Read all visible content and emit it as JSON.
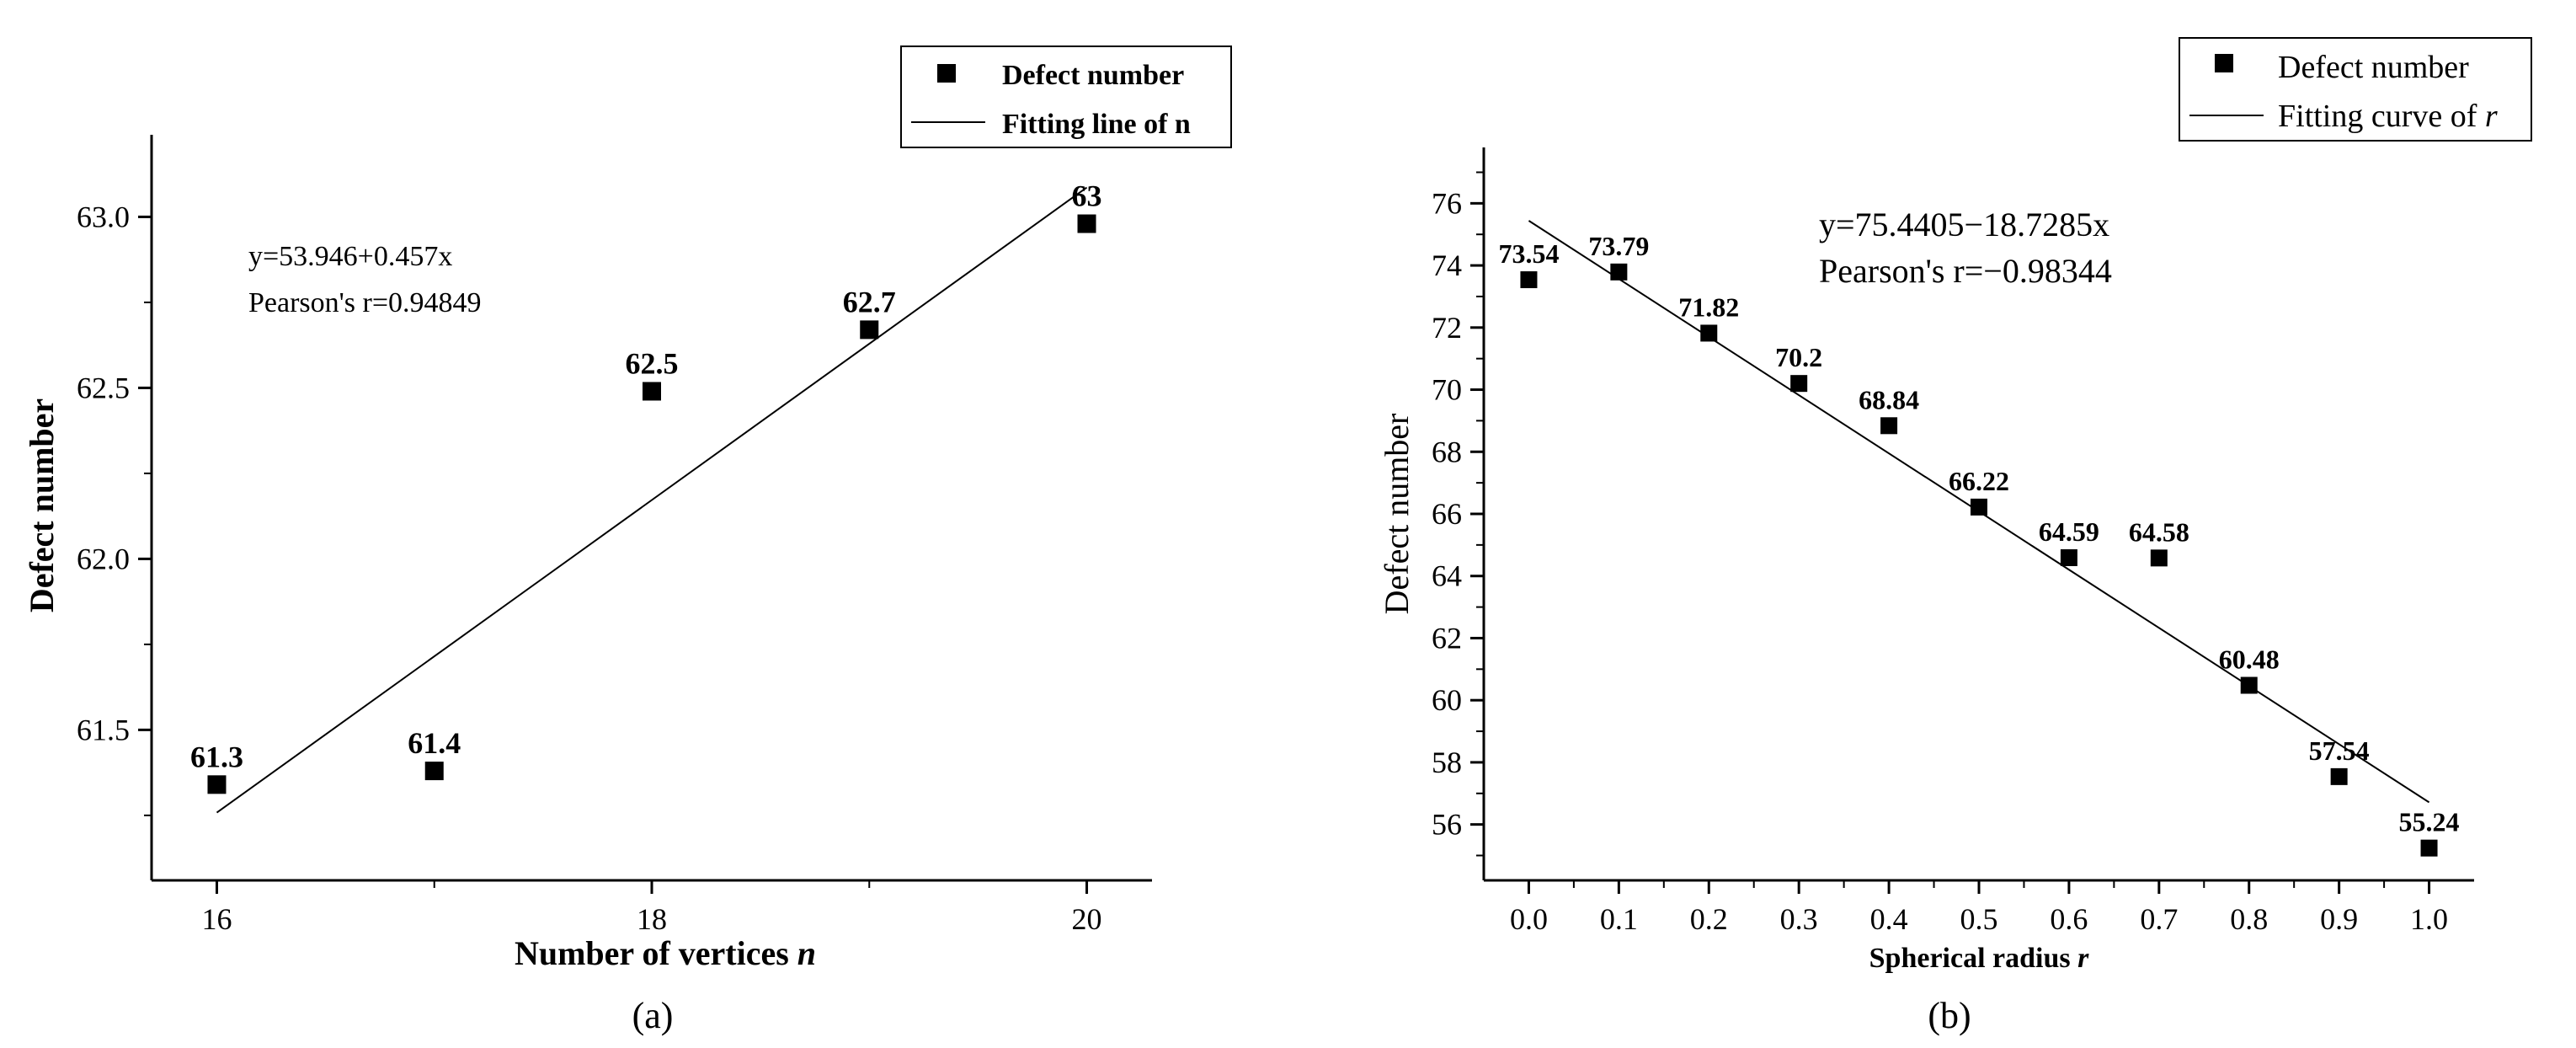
{
  "chart_data": [
    {
      "type": "scatter",
      "panel": "(a)",
      "xlabel": "Number of vertices",
      "xlabel_var": "n",
      "ylabel": "Defect number",
      "xlim": [
        15.7,
        20.3
      ],
      "ylim": [
        61.06,
        63.24
      ],
      "xticks": [
        16,
        18,
        20
      ],
      "xtick_labels": [
        "16",
        "18",
        "20"
      ],
      "yticks": [
        61.5,
        62.0,
        62.5,
        63.0
      ],
      "ytick_labels": [
        "61.5",
        "62.0",
        "62.5",
        "63.0"
      ],
      "grid": false,
      "legend_position": "top-right",
      "series": [
        {
          "name": "Defect number",
          "marker": "square",
          "x": [
            16,
            17,
            18,
            19,
            20
          ],
          "y": [
            61.34,
            61.38,
            62.49,
            62.67,
            62.98
          ],
          "labels": [
            "61.3",
            "61.4",
            "62.5",
            "62.7",
            "63"
          ]
        }
      ],
      "fit": {
        "name": "Fitting line of n",
        "intercept": 53.946,
        "slope": 0.457,
        "x_range": [
          16,
          20
        ]
      },
      "annotations": [
        "y=53.946+0.457x",
        "Pearson's r=0.94849"
      ]
    },
    {
      "type": "scatter",
      "panel": "(b)",
      "xlabel": "Spherical radius",
      "xlabel_var": "r",
      "ylabel": "Defect number",
      "xlim": [
        -0.05,
        1.05
      ],
      "ylim": [
        54.2,
        77.8
      ],
      "xticks": [
        0.0,
        0.1,
        0.2,
        0.3,
        0.4,
        0.5,
        0.6,
        0.7,
        0.8,
        0.9,
        1.0
      ],
      "xtick_labels": [
        "0.0",
        "0.1",
        "0.2",
        "0.3",
        "0.4",
        "0.5",
        "0.6",
        "0.7",
        "0.8",
        "0.9",
        "1.0"
      ],
      "yticks": [
        56,
        58,
        60,
        62,
        64,
        66,
        68,
        70,
        72,
        74,
        76
      ],
      "ytick_labels": [
        "56",
        "58",
        "60",
        "62",
        "64",
        "66",
        "68",
        "70",
        "72",
        "74",
        "76"
      ],
      "grid": false,
      "legend_position": "top-right",
      "series": [
        {
          "name": "Defect number",
          "marker": "square",
          "x": [
            0.0,
            0.1,
            0.2,
            0.3,
            0.4,
            0.5,
            0.6,
            0.7,
            0.8,
            0.9,
            1.0
          ],
          "y": [
            73.54,
            73.79,
            71.82,
            70.2,
            68.84,
            66.22,
            64.59,
            64.58,
            60.48,
            57.54,
            55.24
          ],
          "labels": [
            "73.54",
            "73.79",
            "71.82",
            "70.2",
            "68.84",
            "66.22",
            "64.59",
            "64.58",
            "60.48",
            "57.54",
            "55.24"
          ]
        }
      ],
      "fit": {
        "name": "Fitting curve of r",
        "intercept": 75.4405,
        "slope": -18.7285,
        "x_range": [
          0.0,
          1.0
        ]
      },
      "annotations": [
        "y=75.4405−18.7285x",
        "Pearson's r=−0.98344"
      ]
    }
  ]
}
